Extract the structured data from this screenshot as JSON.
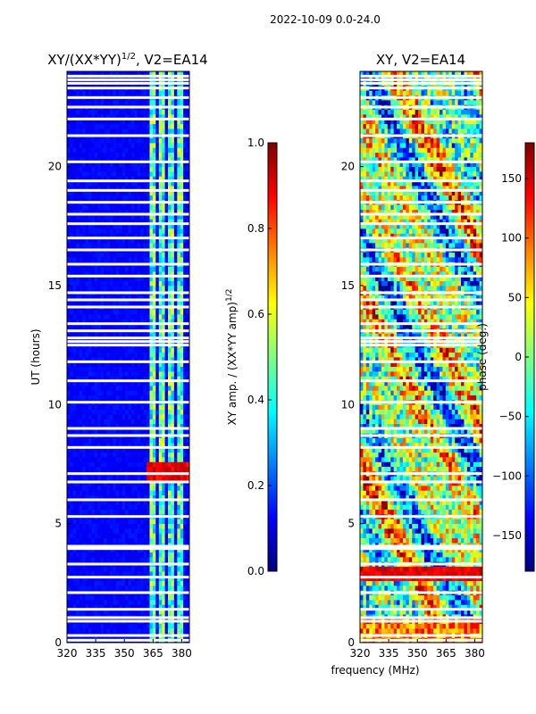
{
  "suptitle": "2022-10-09 0.0-24.0",
  "xlabel": "frequency (MHz)",
  "ylabel": "UT (hours)",
  "colors": {
    "jet": [
      "#00007f",
      "#0000ff",
      "#007fff",
      "#00ffff",
      "#7fff7f",
      "#ffff00",
      "#ff7f00",
      "#ff0000",
      "#7f0000"
    ],
    "blank": "#ffffff"
  },
  "chart_data": [
    {
      "type": "heatmap",
      "panel": "amplitude",
      "title": "XY/(XX*YY)",
      "title_superscript": "1/2",
      "title_suffix": ", V2=EA14",
      "xlabel": "frequency (MHz)",
      "ylabel": "UT (hours)",
      "xlim": [
        320,
        384
      ],
      "ylim": [
        0,
        24
      ],
      "xticks": [
        320,
        335,
        350,
        365,
        380
      ],
      "yticks": [
        0,
        5,
        10,
        15,
        20
      ],
      "colorbar": {
        "label": "XY amp. / (XX*YY amp)",
        "label_superscript": "1/2",
        "range": [
          0.0,
          1.0
        ],
        "ticks": [
          "0.0",
          "0.2",
          "0.4",
          "0.6",
          "0.8",
          "1.0"
        ]
      },
      "features": {
        "background_value": 0.1,
        "bright_band_MHz": [
          [
            364,
            367
          ],
          [
            368,
            371
          ],
          [
            373,
            376
          ],
          [
            378,
            381
          ]
        ],
        "bright_band_value": 0.45,
        "hot_spot_hours": [
          6.8,
          7.7
        ],
        "hot_spot_value": 0.85
      }
    },
    {
      "type": "heatmap",
      "panel": "phase",
      "title": "XY, V2=EA14",
      "xlabel": "frequency (MHz)",
      "xlim": [
        320,
        384
      ],
      "ylim": [
        0,
        24
      ],
      "xticks": [
        320,
        335,
        350,
        365,
        380
      ],
      "yticks": [
        0,
        5,
        10,
        15,
        20
      ],
      "colorbar": {
        "label": "phase (deg.)",
        "range": [
          -180,
          180
        ],
        "ticks": [
          "−150",
          "−100",
          "−50",
          "0",
          "50",
          "100",
          "150"
        ]
      }
    }
  ],
  "blank_rows_hours": [
    0.1,
    0.3,
    0.9,
    1.05,
    1.4,
    2.1,
    2.75,
    3.3,
    3.95,
    4.05,
    5.3,
    6.0,
    6.75,
    7.1,
    8.2,
    8.7,
    9.0,
    10.1,
    11.0,
    11.8,
    12.5,
    12.65,
    12.8,
    13.1,
    13.4,
    14.1,
    14.4,
    14.7,
    15.4,
    15.9,
    16.5,
    17.0,
    17.6,
    18.0,
    18.5,
    19.0,
    19.4,
    20.2,
    21.3,
    22.0,
    22.5,
    22.9,
    23.3,
    23.5,
    23.65,
    23.8
  ]
}
